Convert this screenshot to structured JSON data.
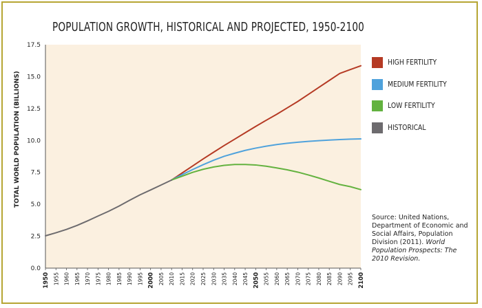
{
  "title": "POPULATION GROWTH, HISTORICAL AND PROJECTED, 1950-2100",
  "colors": {
    "high": "#b53a24",
    "medium": "#4fa2dc",
    "low": "#63b23f",
    "historical": "#6d6b6e",
    "plot_bg": "#fbf0e0",
    "frame": "#b6a532"
  },
  "legend": [
    {
      "label": "HIGH FERTILITY",
      "color": "#b53a24"
    },
    {
      "label": "MEDIUM FERTILITY",
      "color": "#4fa2dc"
    },
    {
      "label": "LOW FERTILITY",
      "color": "#63b23f"
    },
    {
      "label": "HISTORICAL",
      "color": "#6d6b6e"
    }
  ],
  "source": {
    "text": "Source: United Nations, Department of Economic and Social Affairs, Population Division (2011).",
    "italic": "World Population Prospects: The 2010 Revision."
  },
  "chart_data": {
    "type": "line",
    "title": "POPULATION GROWTH, HISTORICAL AND PROJECTED, 1950-2100",
    "xlabel": "",
    "ylabel": "TOTAL WORLD POPULATION (BILLIONS)",
    "xlim": [
      1950,
      2100
    ],
    "ylim": [
      0,
      17.5
    ],
    "yticks": [
      "0.0",
      "2.5",
      "5.0",
      "7.5",
      "10.0",
      "12.5",
      "15.0",
      "17.5"
    ],
    "xticks": [
      "1950",
      "1955",
      "1960",
      "1965",
      "1970",
      "1975",
      "1980",
      "1985",
      "1990",
      "1995",
      "2000",
      "2005",
      "2010",
      "2015",
      "2020",
      "2025",
      "2030",
      "2035",
      "2040",
      "2045",
      "2050",
      "2055",
      "2060",
      "2065",
      "2070",
      "2075",
      "2080",
      "2085",
      "2090",
      "2095",
      "2100"
    ],
    "bold_xticks": [
      "1950",
      "2000",
      "2050",
      "2100"
    ],
    "grid": false,
    "legend_position": "right",
    "series": [
      {
        "name": "HISTORICAL",
        "color": "#6d6b6e",
        "x": [
          1950,
          1955,
          1960,
          1965,
          1970,
          1975,
          1980,
          1985,
          1990,
          1995,
          2000,
          2005,
          2010
        ],
        "y": [
          2.53,
          2.77,
          3.03,
          3.34,
          3.7,
          4.08,
          4.45,
          4.86,
          5.31,
          5.74,
          6.12,
          6.51,
          6.9
        ]
      },
      {
        "name": "HIGH FERTILITY",
        "color": "#b53a24",
        "x": [
          2010,
          2015,
          2020,
          2025,
          2030,
          2035,
          2040,
          2045,
          2050,
          2055,
          2060,
          2065,
          2070,
          2075,
          2080,
          2085,
          2090,
          2095,
          2100
        ],
        "y": [
          6.9,
          7.45,
          8.0,
          8.55,
          9.08,
          9.6,
          10.1,
          10.6,
          11.1,
          11.58,
          12.05,
          12.55,
          13.05,
          13.6,
          14.15,
          14.7,
          15.25,
          15.55,
          15.85
        ]
      },
      {
        "name": "MEDIUM FERTILITY",
        "color": "#4fa2dc",
        "x": [
          2010,
          2015,
          2020,
          2025,
          2030,
          2035,
          2040,
          2045,
          2050,
          2055,
          2060,
          2065,
          2070,
          2075,
          2080,
          2085,
          2090,
          2095,
          2100
        ],
        "y": [
          6.9,
          7.32,
          7.72,
          8.1,
          8.45,
          8.76,
          9.0,
          9.22,
          9.4,
          9.55,
          9.68,
          9.78,
          9.86,
          9.93,
          9.98,
          10.03,
          10.07,
          10.1,
          10.12
        ]
      },
      {
        "name": "LOW FERTILITY",
        "color": "#63b23f",
        "x": [
          2010,
          2015,
          2020,
          2025,
          2030,
          2035,
          2040,
          2045,
          2050,
          2055,
          2060,
          2065,
          2070,
          2075,
          2080,
          2085,
          2090,
          2095,
          2100
        ],
        "y": [
          6.9,
          7.2,
          7.5,
          7.74,
          7.92,
          8.05,
          8.12,
          8.12,
          8.08,
          7.98,
          7.85,
          7.7,
          7.52,
          7.3,
          7.06,
          6.8,
          6.55,
          6.38,
          6.15
        ]
      }
    ]
  }
}
